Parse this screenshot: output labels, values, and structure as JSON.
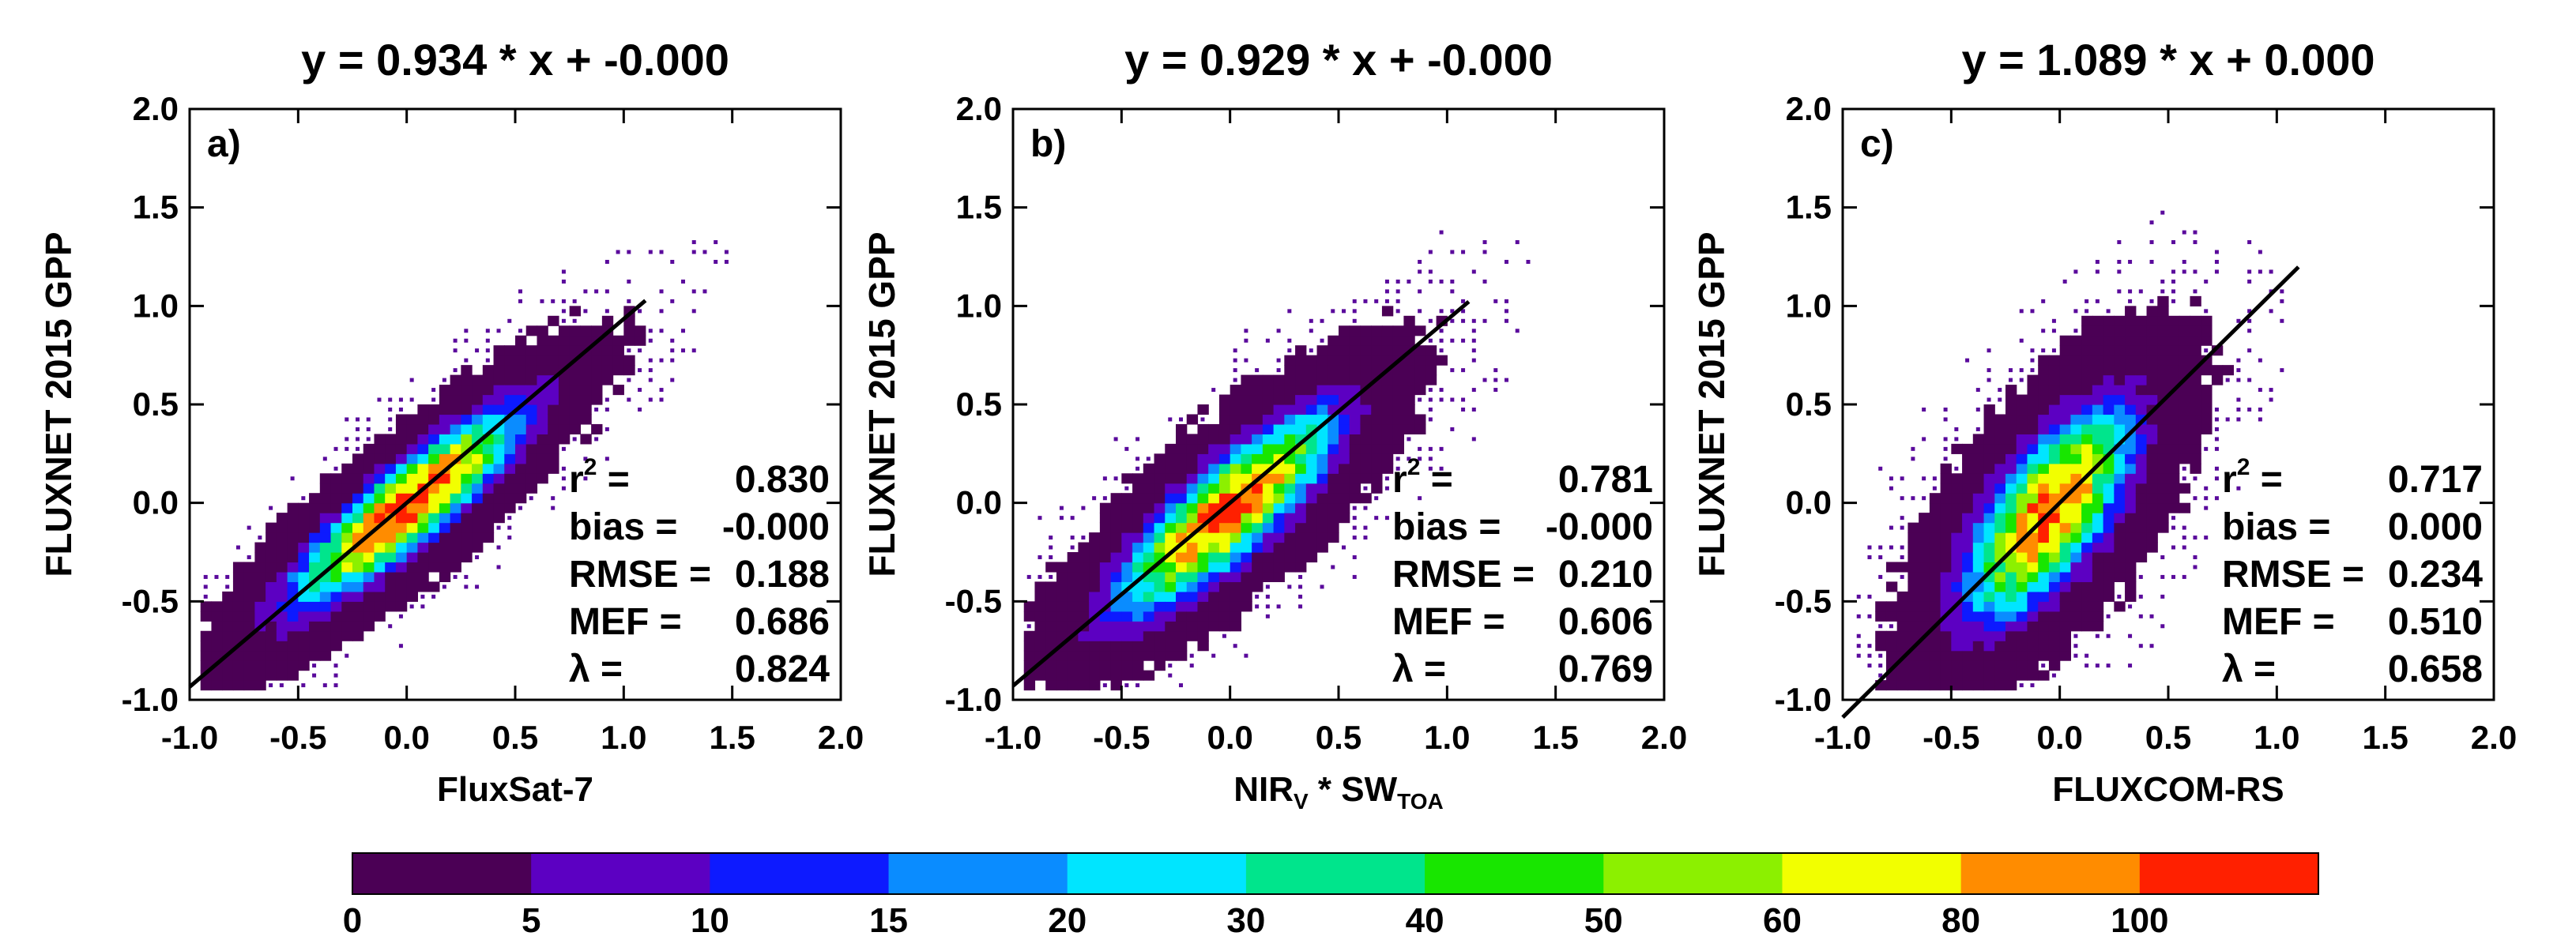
{
  "chart_data": [
    {
      "type": "heatmap",
      "panel_label": "a)",
      "title": "y =  0.934 * x + -0.000",
      "xlabel": "FluxSat-7",
      "ylabel": "FLUXNET 2015 GPP",
      "xlim": [
        -1.0,
        2.0
      ],
      "ylim": [
        -1.0,
        2.0
      ],
      "xticks": [
        "-1.0",
        "-0.5",
        "0.0",
        "0.5",
        "1.0",
        "1.5",
        "2.0"
      ],
      "yticks": [
        "-1.0",
        "-0.5",
        "0.0",
        "0.5",
        "1.0",
        "1.5",
        "2.0"
      ],
      "regression": {
        "slope": 0.934,
        "intercept": 0.0,
        "x_range": [
          -1.0,
          1.1
        ]
      },
      "density": {
        "slope": 0.934,
        "center": [
          0.0,
          -0.02
        ],
        "sd_along": 0.34,
        "sd_across": 0.085,
        "peak": 115
      },
      "stats": [
        {
          "label": "r",
          "sup": "2",
          "suffix": " =",
          "value": "0.830"
        },
        {
          "label": "bias =",
          "value": "-0.000"
        },
        {
          "label": "RMSE =",
          "value": "0.188"
        },
        {
          "label": "MEF =",
          "value": "0.686"
        },
        {
          "label": "λ =",
          "value": "0.824"
        }
      ]
    },
    {
      "type": "heatmap",
      "panel_label": "b)",
      "title": "y =  0.929 * x + -0.000",
      "xlabel": "NIR",
      "xlabel_sub1": "V",
      "xlabel_mid": " * SW",
      "xlabel_sub2": "TOA",
      "ylabel": "FLUXNET 2015 GPP",
      "xlim": [
        -1.0,
        2.0
      ],
      "ylim": [
        -1.0,
        2.0
      ],
      "xticks": [
        "-1.0",
        "-0.5",
        "0.0",
        "0.5",
        "1.0",
        "1.5",
        "2.0"
      ],
      "yticks": [
        "-1.0",
        "-0.5",
        "0.0",
        "0.5",
        "1.0",
        "1.5",
        "2.0"
      ],
      "regression": {
        "slope": 0.929,
        "intercept": 0.0,
        "x_range": [
          -1.0,
          1.1
        ]
      },
      "density": {
        "slope": 1.0,
        "center": [
          -0.02,
          -0.05
        ],
        "sd_along": 0.33,
        "sd_across": 0.1,
        "peak": 110
      },
      "stats": [
        {
          "label": "r",
          "sup": "2",
          "suffix": " =",
          "value": "0.781"
        },
        {
          "label": "bias =",
          "value": "-0.000"
        },
        {
          "label": "RMSE =",
          "value": "0.210"
        },
        {
          "label": "MEF =",
          "value": "0.606"
        },
        {
          "label": "λ =",
          "value": "0.769"
        }
      ]
    },
    {
      "type": "heatmap",
      "panel_label": "c)",
      "title": "y =  1.089 * x +  0.000",
      "xlabel": "FLUXCOM-RS",
      "ylabel": "FLUXNET 2015 GPP",
      "xlim": [
        -1.0,
        2.0
      ],
      "ylim": [
        -1.0,
        2.0
      ],
      "xticks": [
        "-1.0",
        "-0.5",
        "0.0",
        "0.5",
        "1.0",
        "1.5",
        "2.0"
      ],
      "yticks": [
        "-1.0",
        "-0.5",
        "0.0",
        "0.5",
        "1.0",
        "1.5",
        "2.0"
      ],
      "regression": {
        "slope": 1.089,
        "intercept": 0.0,
        "x_range": [
          -1.0,
          1.1
        ]
      },
      "density": {
        "slope": 1.6,
        "center": [
          -0.05,
          -0.05
        ],
        "sd_along": 0.3,
        "sd_across": 0.12,
        "peak": 100
      },
      "stats": [
        {
          "label": "r",
          "sup": "2",
          "suffix": " =",
          "value": "0.717"
        },
        {
          "label": "bias =",
          "value": "0.000"
        },
        {
          "label": "RMSE =",
          "value": "0.234"
        },
        {
          "label": "MEF =",
          "value": "0.510"
        },
        {
          "label": "λ =",
          "value": "0.658"
        }
      ]
    }
  ],
  "colorbar": {
    "bounds": [
      "0",
      "5",
      "10",
      "15",
      "20",
      "30",
      "40",
      "50",
      "60",
      "80",
      "100"
    ],
    "colors": [
      "#4b0055",
      "#5c00c2",
      "#0d1aff",
      "#0a8cff",
      "#00e5ff",
      "#00e58c",
      "#18e600",
      "#8cf000",
      "#f2ff00",
      "#ff8c00",
      "#ff2000"
    ]
  }
}
